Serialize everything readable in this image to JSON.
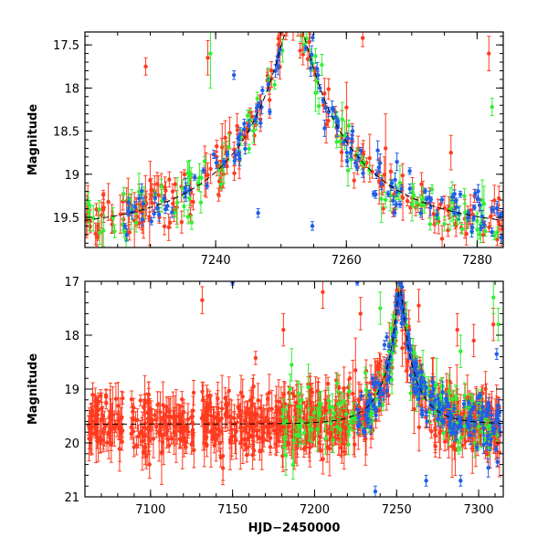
{
  "chart_data": [
    {
      "type": "scatter",
      "panel": "top",
      "title": "",
      "xlabel": "",
      "ylabel": "Magnitude",
      "xlim": [
        7220,
        7284
      ],
      "ylim": [
        19.85,
        17.35
      ],
      "y_inverted": true,
      "xticks": [
        7240,
        7260,
        7280
      ],
      "xtick_labels": [
        "7240",
        "7260",
        "7280"
      ],
      "x_minor_step": 5,
      "yticks": [
        17.5,
        18,
        18.5,
        19,
        19.5
      ],
      "ytick_labels": [
        "17.5",
        "18",
        "18.5",
        "19",
        "19.5"
      ],
      "y_minor_step": 0.1,
      "model_curve": {
        "name": "microlensing model",
        "style": "dashed",
        "color": "#000000",
        "t0": 7252,
        "tE": 20,
        "u0": 0.1,
        "baseline": 19.65
      },
      "series": [
        {
          "name": "red",
          "color": "#ff3b1f",
          "count": 240,
          "t_range": [
            7220,
            7284
          ],
          "scatter": 0.14,
          "err_range": [
            0.05,
            0.34
          ],
          "seed": 11,
          "outliers": [
            [
              7229.3,
              17.75,
              0.1
            ],
            [
              7238.8,
              17.65,
              0.2
            ],
            [
              7262.5,
              17.42,
              0.1
            ],
            [
              7281.8,
              17.6,
              0.2
            ],
            [
              7276,
              18.75,
              0.2
            ],
            [
              7266,
              18.7,
              0.4
            ]
          ]
        },
        {
          "name": "green",
          "color": "#33ee33",
          "count": 120,
          "t_range": [
            7220,
            7284
          ],
          "scatter": 0.15,
          "err_range": [
            0.05,
            0.32
          ],
          "seed": 23,
          "outliers": [
            [
              7239.2,
              17.6,
              0.4
            ],
            [
              7282.3,
              18.22,
              0.1
            ],
            [
              7268.2,
              19.1,
              0.2
            ]
          ]
        },
        {
          "name": "blue",
          "color": "#1f5fe8",
          "count": 150,
          "t_range": [
            7226,
            7284
          ],
          "scatter": 0.12,
          "err_range": [
            0.03,
            0.12
          ],
          "seed": 37,
          "outliers": [
            [
              7242.8,
              17.85,
              0.05
            ],
            [
              7246.5,
              19.45,
              0.05
            ],
            [
              7254.8,
              19.6,
              0.05
            ],
            [
              7264.6,
              19.0,
              0.05
            ],
            [
              7271.4,
              19.45,
              0.05
            ]
          ]
        }
      ]
    },
    {
      "type": "scatter",
      "panel": "bottom",
      "title": "",
      "xlabel": "HJD−2450000",
      "ylabel": "Magnitude",
      "xlim": [
        7060,
        7315
      ],
      "ylim": [
        21,
        17
      ],
      "y_inverted": true,
      "xticks": [
        7100,
        7150,
        7200,
        7250,
        7300
      ],
      "xtick_labels": [
        "7100",
        "7150",
        "7200",
        "7250",
        "7300"
      ],
      "x_minor_step": 10,
      "yticks": [
        17,
        18,
        19,
        20,
        21
      ],
      "ytick_labels": [
        "17",
        "18",
        "19",
        "20",
        "21"
      ],
      "y_minor_step": 0.2,
      "model_curve": {
        "name": "microlensing model",
        "style": "dashed",
        "color": "#000000",
        "t0": 7252,
        "tE": 20,
        "u0": 0.1,
        "baseline": 19.65
      },
      "series": [
        {
          "name": "red",
          "color": "#ff3b1f",
          "count": 900,
          "t_range": [
            7062,
            7313
          ],
          "scatter": 0.28,
          "err_range": [
            0.1,
            0.7
          ],
          "seed": 51,
          "gaps": [
            [
              7083,
              7088
            ],
            [
              7127,
              7131
            ]
          ],
          "outliers": [
            [
              7131.5,
              17.35,
              0.25
            ],
            [
              7181,
              17.9,
              0.3
            ],
            [
              7205,
              17.2,
              0.3
            ],
            [
              7228,
              17.6,
              0.3
            ],
            [
              7263.5,
              17.45,
              0.3
            ],
            [
              7287,
              17.9,
              0.3
            ],
            [
              7297,
              18.1,
              0.3
            ],
            [
              7309,
              17.8,
              0.3
            ]
          ]
        },
        {
          "name": "green",
          "color": "#33ee33",
          "count": 160,
          "t_range": [
            7180,
            7313
          ],
          "scatter": 0.3,
          "err_range": [
            0.1,
            0.5
          ],
          "seed": 63,
          "outliers": [
            [
              7186,
              18.55,
              0.3
            ],
            [
              7240,
              17.5,
              0.3
            ],
            [
              7289,
              18.3,
              0.3
            ],
            [
              7309,
              17.3,
              0.3
            ],
            [
              7312,
              17.8,
              0.3
            ]
          ]
        },
        {
          "name": "blue",
          "color": "#1f5fe8",
          "count": 210,
          "t_range": [
            7226,
            7313
          ],
          "scatter": 0.24,
          "err_range": [
            0.05,
            0.2
          ],
          "seed": 77,
          "outliers": [
            [
              7150,
              17.02,
              0.05
            ],
            [
              7226,
              17.02,
              0.05
            ],
            [
              7237,
              20.9,
              0.1
            ],
            [
              7268,
              20.7,
              0.1
            ],
            [
              7289,
              20.7,
              0.1
            ],
            [
              7311,
              18.35,
              0.1
            ]
          ]
        }
      ]
    }
  ]
}
